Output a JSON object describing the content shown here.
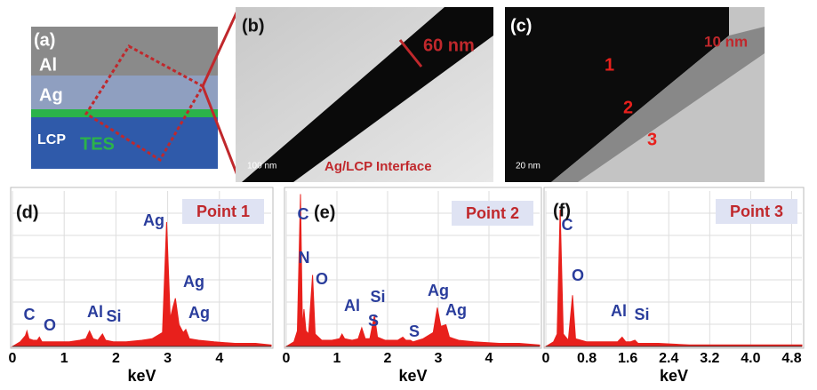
{
  "panel_a": {
    "label": "(a)",
    "layers": [
      "Al",
      "Ag",
      "LCP",
      "TES"
    ]
  },
  "panel_b": {
    "label": "(b)",
    "thickness": "60 nm",
    "scale_bar": "100 nm",
    "interface": "Ag/LCP Interface"
  },
  "panel_c": {
    "label": "(c)",
    "thickness": "10 nm",
    "scale_bar": "20 nm",
    "points": [
      "1",
      "2",
      "3"
    ]
  },
  "chart_data": [
    {
      "type": "line",
      "panel": "(d)",
      "title": "Point 1",
      "x_label": "keV",
      "color": "#e8201c",
      "grid": true,
      "xlim": [
        0,
        5
      ],
      "ylim": [
        0,
        100
      ],
      "xticks": [
        0,
        1,
        2,
        3,
        4
      ],
      "x": [
        0,
        0.15,
        0.25,
        0.28,
        0.32,
        0.4,
        0.48,
        0.52,
        0.57,
        0.7,
        0.9,
        1.1,
        1.3,
        1.42,
        1.49,
        1.56,
        1.65,
        1.74,
        1.8,
        1.95,
        2.2,
        2.5,
        2.7,
        2.9,
        2.98,
        3.05,
        3.1,
        3.15,
        3.22,
        3.3,
        3.35,
        3.42,
        3.6,
        3.9,
        4.3,
        4.7,
        5
      ],
      "values": [
        0,
        3,
        7,
        10,
        5,
        4,
        4,
        6,
        3,
        3,
        3,
        3,
        4,
        5,
        10,
        5,
        4,
        8,
        4,
        3,
        3,
        4,
        5,
        9,
        80,
        18,
        25,
        31,
        14,
        9,
        11,
        5,
        4,
        3,
        2,
        2,
        1
      ],
      "annotations": [
        "C",
        "O",
        "Al",
        "Si",
        "Ag",
        "Ag",
        "Ag"
      ]
    },
    {
      "type": "line",
      "panel": "(e)",
      "title": "Point 2",
      "x_label": "keV",
      "color": "#e8201c",
      "grid": true,
      "xlim": [
        0,
        5
      ],
      "ylim": [
        0,
        100
      ],
      "xticks": [
        0,
        1,
        2,
        3,
        4
      ],
      "x": [
        0,
        0.15,
        0.22,
        0.28,
        0.32,
        0.35,
        0.39,
        0.44,
        0.52,
        0.57,
        0.7,
        0.9,
        1.05,
        1.1,
        1.15,
        1.3,
        1.42,
        1.49,
        1.56,
        1.65,
        1.74,
        1.8,
        1.95,
        2.2,
        2.3,
        2.36,
        2.45,
        2.5,
        2.7,
        2.9,
        2.98,
        3.05,
        3.15,
        3.22,
        3.4,
        3.7,
        4.2,
        4.6,
        5
      ],
      "values": [
        0,
        3,
        10,
        98,
        12,
        24,
        10,
        8,
        46,
        8,
        4,
        4,
        5,
        8,
        5,
        4,
        5,
        12,
        5,
        5,
        20,
        6,
        4,
        4,
        6,
        4,
        4,
        3,
        5,
        9,
        25,
        13,
        14,
        6,
        4,
        3,
        2,
        2,
        1
      ],
      "annotations": [
        "C",
        "N",
        "O",
        "Al",
        "Si",
        "S",
        "S",
        "Ag",
        "Ag"
      ]
    },
    {
      "type": "line",
      "panel": "(f)",
      "title": "Point 3",
      "x_label": "keV",
      "color": "#e8201c",
      "grid": true,
      "xlim": [
        0,
        5
      ],
      "ylim": [
        0,
        100
      ],
      "xticks": [
        0,
        0.8,
        1.6,
        2.4,
        3.2,
        {
          "value": 4,
          "label": "4.0"
        },
        4.8
      ],
      "x": [
        0,
        0.15,
        0.22,
        0.28,
        0.34,
        0.44,
        0.52,
        0.58,
        0.8,
        1.1,
        1.4,
        1.49,
        1.56,
        1.65,
        1.74,
        1.8,
        2.2,
        2.8,
        3.5,
        4.2,
        5
      ],
      "values": [
        0,
        3,
        8,
        88,
        8,
        4,
        33,
        5,
        3,
        3,
        3,
        6,
        3,
        3,
        4,
        2,
        2,
        1,
        1,
        1,
        1
      ],
      "annotations": [
        "C",
        "O",
        "Al",
        "Si"
      ]
    }
  ]
}
